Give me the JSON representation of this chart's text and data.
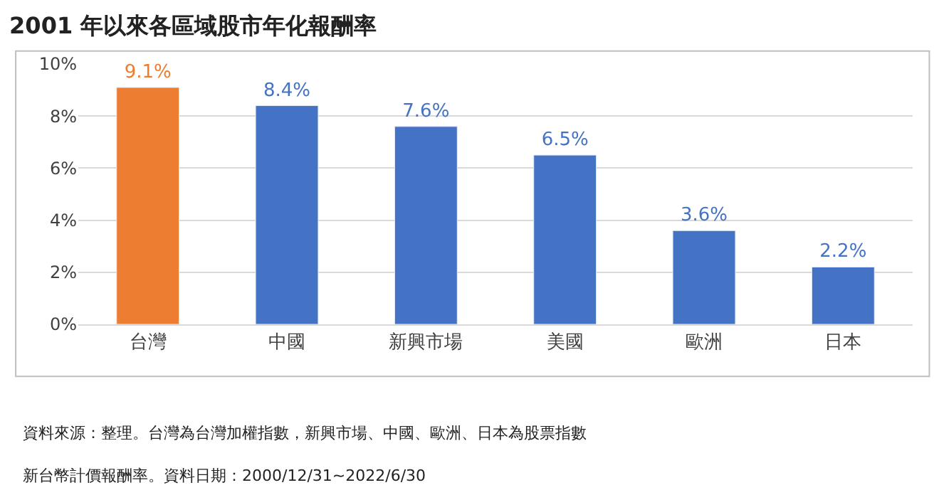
{
  "chart_data": {
    "type": "bar",
    "title": "2001 年以來各區域股市年化報酬率",
    "categories": [
      "台灣",
      "中國",
      "新興市場",
      "美國",
      "歐洲",
      "日本"
    ],
    "values": [
      9.1,
      8.4,
      7.6,
      6.5,
      3.6,
      2.2
    ],
    "colors": [
      "#ed7d31",
      "#4472c4",
      "#4472c4",
      "#4472c4",
      "#4472c4",
      "#4472c4"
    ],
    "value_labels": [
      "9.1%",
      "8.4%",
      "7.6%",
      "6.5%",
      "3.6%",
      "2.2%"
    ],
    "ylim": [
      0,
      10
    ],
    "yticks": [
      {
        "value": 0,
        "label": "0%"
      },
      {
        "value": 2,
        "label": "2%"
      },
      {
        "value": 4,
        "label": "4%"
      },
      {
        "value": 6,
        "label": "6%"
      },
      {
        "value": 8,
        "label": "8%"
      },
      {
        "value": 10,
        "label": "10%"
      }
    ],
    "grid": "y",
    "annotations": [
      "資料來源：整理。台灣為台灣加權指數，新興市場、中國、歐洲、日本為股票指數",
      "新台幣計價報酬率。資料日期：2000/12/31~2022/6/30"
    ]
  }
}
